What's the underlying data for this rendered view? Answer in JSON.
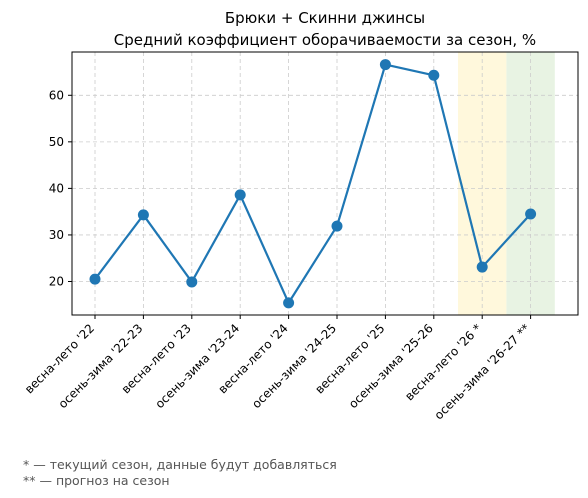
{
  "chart_data": {
    "type": "line",
    "title": "Брюки + Скинни джинсы",
    "subtitle": "Средний коэффициент оборачиваемости за сезон, %",
    "xlabel": "",
    "ylabel": "",
    "categories": [
      "весна-лето '22",
      "осень-зима '22-23",
      "весна-лето '23",
      "осень-зима '23-24",
      "весна-лето '24",
      "осень-зима '24-25",
      "весна-лето '25",
      "осень-зима '25-26",
      "весна-лето '26 *",
      "осень-зима '26-27 **"
    ],
    "series": [
      {
        "values": [
          20.5,
          34.3,
          19.9,
          38.6,
          15.4,
          31.9,
          66.6,
          64.3,
          23.1,
          34.5
        ]
      }
    ],
    "ylim": [
      12.8,
      69.3
    ],
    "yticks": [
      20,
      30,
      40,
      50,
      60
    ],
    "grid": true,
    "highlight_bands": [
      {
        "category": "весна-лето '26 *",
        "color": "#fff8dc"
      },
      {
        "category": "осень-зима '26-27 **",
        "color": "#e8f3e3"
      }
    ],
    "line_color": "#1f77b4",
    "footnotes": [
      "* — текущий сезон, данные будут добавляться",
      "** — прогноз на сезон"
    ]
  }
}
